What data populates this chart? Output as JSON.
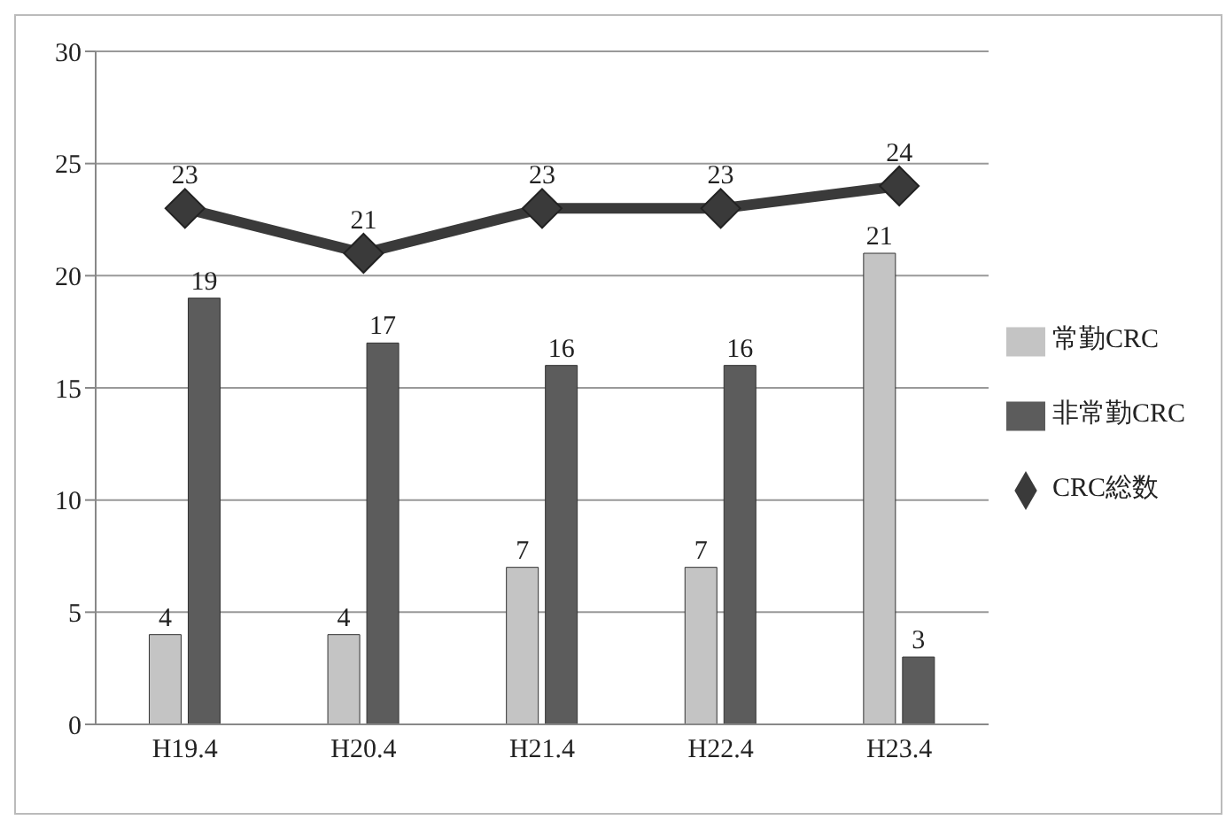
{
  "chart_data": {
    "type": "bar",
    "categories": [
      "H19.4",
      "H20.4",
      "H21.4",
      "H22.4",
      "H23.4"
    ],
    "series": [
      {
        "name": "常勤CRC",
        "color": "#c4c4c4",
        "values": [
          4,
          4,
          7,
          7,
          21
        ]
      },
      {
        "name": "非常勤CRC",
        "color": "#5c5c5c",
        "values": [
          19,
          17,
          16,
          16,
          3
        ]
      },
      {
        "name": "CRC総数",
        "type": "line",
        "color": "#3a3a3a",
        "values": [
          23,
          21,
          23,
          23,
          24
        ],
        "marker": "diamond"
      }
    ],
    "ylim": [
      0,
      30
    ],
    "yticks": [
      0,
      5,
      10,
      15,
      20,
      25,
      30
    ],
    "grid": "y",
    "legend": "right",
    "data_labels": true
  }
}
